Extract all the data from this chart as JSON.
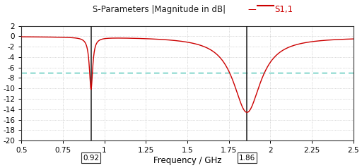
{
  "title": "S-Parameters |Magnitude in dB|",
  "legend_label": "S1,1",
  "xlabel": "Frequency / GHz",
  "xlim": [
    0.5,
    2.5
  ],
  "ylim": [
    -20,
    2
  ],
  "yticks": [
    2,
    0,
    -2,
    -4,
    -6,
    -8,
    -10,
    -12,
    -14,
    -16,
    -18,
    -20
  ],
  "xticks": [
    0.5,
    0.75,
    1.0,
    1.25,
    1.5,
    1.75,
    2.0,
    2.25,
    2.5
  ],
  "xtick_labels": [
    "0.5",
    "0.75",
    "1",
    "1.25",
    "1.5",
    "1.75",
    "2",
    "2.25",
    "2.5"
  ],
  "vline1_x": 0.92,
  "vline2_x": 1.86,
  "hline_y": -7.0,
  "line_color": "#cc0000",
  "vline_color": "#1a1a1a",
  "hline_color": "#33bbaa",
  "bg_color": "#ffffff",
  "grid_color": "#999999",
  "title_color": "#1a1a1a",
  "legend_color": "#cc0000",
  "figsize": [
    5.12,
    2.38
  ],
  "dpi": 100
}
